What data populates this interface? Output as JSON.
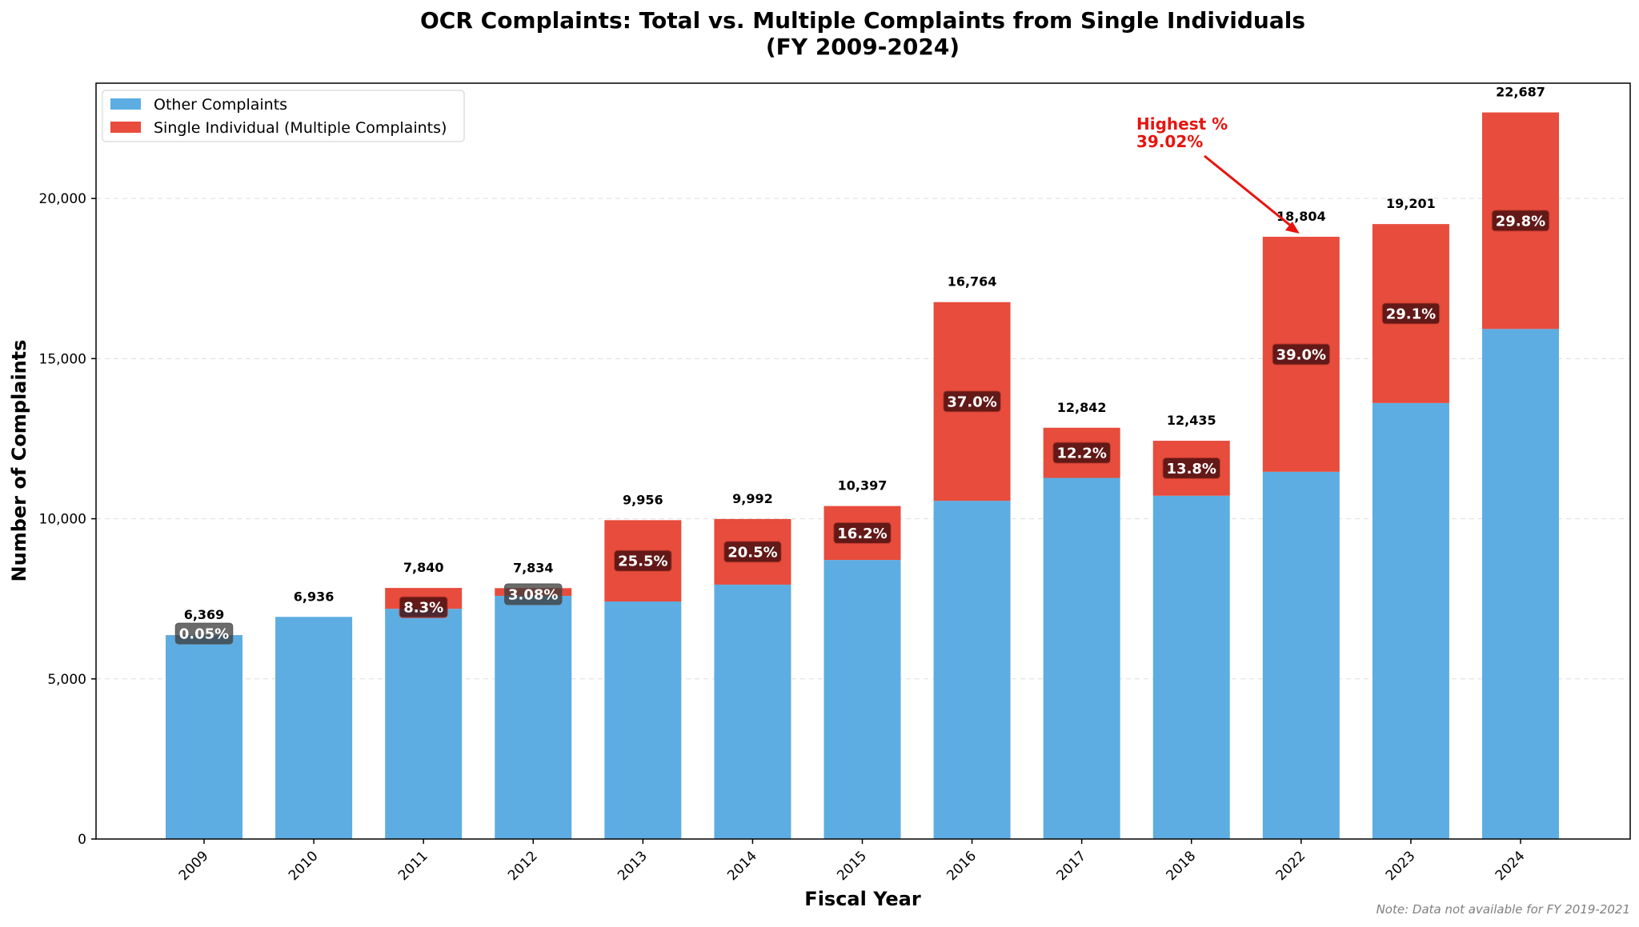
{
  "chart_data": {
    "type": "bar",
    "stacked": true,
    "title": "OCR Complaints: Total vs. Multiple Complaints from Single Individuals",
    "subtitle": "(FY 2009-2024)",
    "xlabel": "Fiscal Year",
    "ylabel": "Number of Complaints",
    "ylim": [
      0,
      23600
    ],
    "yticks": [
      0,
      5000,
      10000,
      15000,
      20000
    ],
    "ytick_labels": [
      "0",
      "5,000",
      "10,000",
      "15,000",
      "20,000"
    ],
    "grid": "y-dashed",
    "legend_position": "top-left",
    "categories": [
      "2009",
      "2010",
      "2011",
      "2012",
      "2013",
      "2014",
      "2015",
      "2016",
      "2017",
      "2018",
      "2022",
      "2023",
      "2024"
    ],
    "totals": [
      6369,
      6936,
      7840,
      7834,
      9956,
      9992,
      10397,
      16764,
      12842,
      12435,
      18804,
      19201,
      22687
    ],
    "total_labels": [
      "6,369",
      "6,936",
      "7,840",
      "7,834",
      "9,956",
      "9,992",
      "10,397",
      "16,764",
      "12,842",
      "12,435",
      "18,804",
      "19,201",
      "22,687"
    ],
    "percent_labels": [
      "0.05%",
      "",
      "8.3%",
      "3.08%",
      "25.5%",
      "20.5%",
      "16.2%",
      "37.0%",
      "12.2%",
      "13.8%",
      "39.0%",
      "29.1%",
      "29.8%"
    ],
    "series": [
      {
        "name": "Other Complaints",
        "color": "#5dade2",
        "values": [
          6366,
          6936,
          7189,
          7593,
          7417,
          7943,
          8713,
          10561,
          11275,
          10719,
          11467,
          13614,
          15926
        ]
      },
      {
        "name": "Single Individual (Multiple Complaints)",
        "color": "#e74c3c",
        "values": [
          3,
          0,
          651,
          241,
          2539,
          2049,
          1684,
          6203,
          1567,
          1716,
          7337,
          5587,
          6761
        ]
      }
    ],
    "annotation": {
      "line1": "Highest %",
      "line2": "39.02%",
      "target_category": "2022",
      "color": "#e8140f"
    },
    "note": "Note: Data not available for FY 2019-2021"
  }
}
